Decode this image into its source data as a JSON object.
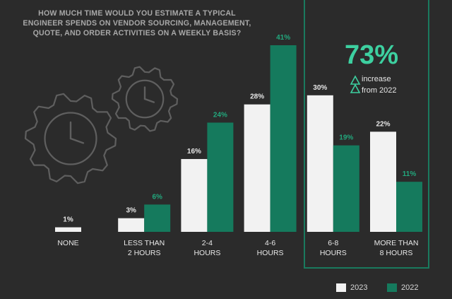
{
  "header": {
    "title_lines": [
      "HOW MUCH TIME WOULD YOU ESTIMATE A TYPICAL",
      "ENGINEER SPENDS ON VENDOR SOURCING, MANAGEMENT,",
      "QUOTE, AND ORDER ACTIVITIES ON A WEEKLY BASIS?"
    ]
  },
  "callout": {
    "value": "73%",
    "line1": "increase",
    "line2": "from 2022",
    "icon": "up-arrows-icon"
  },
  "decorations": {
    "icons": [
      "gear-clock-icon",
      "gear-clock-icon"
    ]
  },
  "colors": {
    "background": "#2b2b2b",
    "series_2023": "#f2f2f2",
    "series_2022": "#157a5d",
    "label_2022": "#22a87d",
    "accent": "#3dd0a0",
    "gear": "#5f5f5f"
  },
  "chart_data": {
    "type": "bar",
    "title": "HOW MUCH TIME WOULD YOU ESTIMATE A TYPICAL ENGINEER SPENDS ON VENDOR SOURCING, MANAGEMENT, QUOTE, AND ORDER ACTIVITIES ON A WEEKLY BASIS?",
    "categories": [
      [
        "NONE"
      ],
      [
        "LESS THAN",
        "2 HOURS"
      ],
      [
        "2-4",
        "HOURS"
      ],
      [
        "4-6",
        "HOURS"
      ],
      [
        "6-8",
        "HOURS"
      ],
      [
        "MORE THAN",
        "8 HOURS"
      ]
    ],
    "series": [
      {
        "name": "2023",
        "values": [
          1,
          3,
          16,
          28,
          30,
          22
        ],
        "labels": [
          "1%",
          "3%",
          "16%",
          "28%",
          "30%",
          "22%"
        ]
      },
      {
        "name": "2022",
        "values": [
          null,
          6,
          24,
          41,
          19,
          11
        ],
        "labels": [
          "",
          "6%",
          "24%",
          "41%",
          "19%",
          "11%"
        ]
      }
    ],
    "ylim": [
      0,
      41
    ],
    "grid": false,
    "legend": "bottom-right"
  }
}
